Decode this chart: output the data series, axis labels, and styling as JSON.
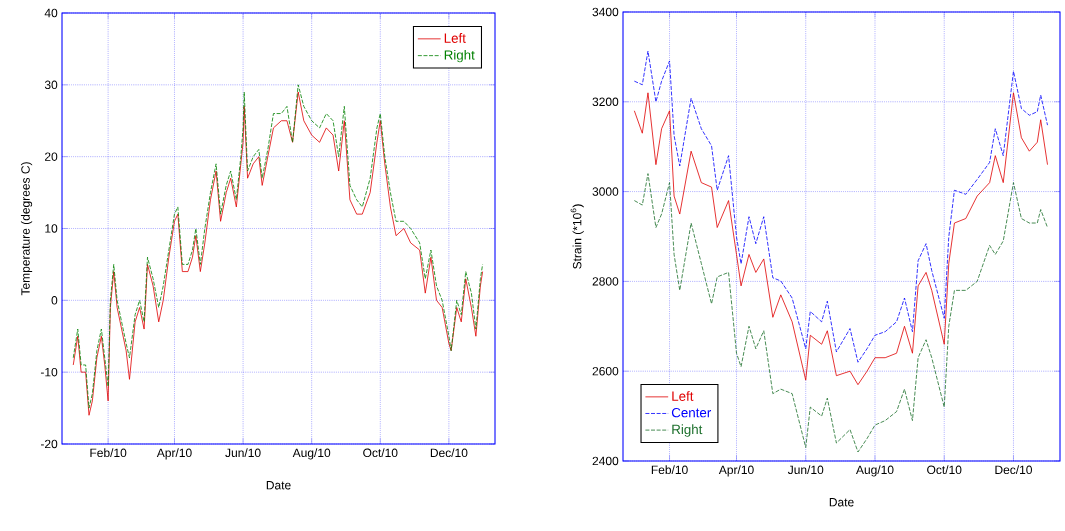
{
  "chart_data": [
    {
      "type": "line",
      "xlabel": "Date",
      "ylabel": "Temperature (degrees C)",
      "x": [
        "2010-01-01",
        "2010-01-05",
        "2010-01-08",
        "2010-01-12",
        "2010-01-15",
        "2010-01-18",
        "2010-01-22",
        "2010-01-26",
        "2010-01-29",
        "2010-02-01",
        "2010-02-03",
        "2010-02-06",
        "2010-02-09",
        "2010-02-13",
        "2010-02-17",
        "2010-02-20",
        "2010-02-25",
        "2010-03-01",
        "2010-03-05",
        "2010-03-08",
        "2010-03-13",
        "2010-03-18",
        "2010-03-22",
        "2010-03-27",
        "2010-04-01",
        "2010-04-04",
        "2010-04-08",
        "2010-04-13",
        "2010-04-17",
        "2010-04-20",
        "2010-04-24",
        "2010-04-28",
        "2010-05-03",
        "2010-05-08",
        "2010-05-12",
        "2010-05-17",
        "2010-05-21",
        "2010-05-26",
        "2010-05-30",
        "2010-06-01",
        "2010-06-02",
        "2010-06-05",
        "2010-06-10",
        "2010-06-15",
        "2010-06-18",
        "2010-06-23",
        "2010-06-28",
        "2010-07-05",
        "2010-07-10",
        "2010-07-15",
        "2010-07-20",
        "2010-07-25",
        "2010-08-01",
        "2010-08-08",
        "2010-08-14",
        "2010-08-20",
        "2010-08-25",
        "2010-08-30",
        "2010-09-04",
        "2010-09-10",
        "2010-09-15",
        "2010-09-22",
        "2010-09-28",
        "2010-10-01",
        "2010-10-05",
        "2010-10-10",
        "2010-10-15",
        "2010-10-22",
        "2010-10-28",
        "2010-11-05",
        "2010-11-10",
        "2010-11-15",
        "2010-11-20",
        "2010-11-25",
        "2010-12-01",
        "2010-12-03",
        "2010-12-08",
        "2010-12-12",
        "2010-12-16",
        "2010-12-21",
        "2010-12-25",
        "2010-12-29",
        "2010-12-31"
      ],
      "series": [
        {
          "name": "Left",
          "color": "#e00000",
          "line_style": "solid",
          "values": [
            -9,
            -5,
            -10,
            -10,
            -16,
            -14,
            -8,
            -5,
            -9,
            -14,
            -1,
            4,
            -1,
            -4,
            -7,
            -11,
            -3,
            -1,
            -4,
            5,
            2,
            -3,
            0,
            6,
            11,
            12,
            4,
            4,
            6,
            9,
            4,
            8,
            14,
            18,
            11,
            15,
            17,
            13,
            19,
            22,
            27,
            17,
            19,
            20,
            16,
            20,
            24,
            25,
            25,
            22,
            29,
            25,
            23,
            22,
            24,
            23,
            18,
            25,
            14,
            12,
            12,
            15,
            22,
            25,
            19,
            13,
            9,
            10,
            8,
            7,
            1,
            6,
            0,
            -1,
            -6,
            -7,
            -1,
            -3,
            3,
            -1,
            -5,
            2,
            4
          ]
        },
        {
          "name": "Right",
          "color": "#008000",
          "line_style": "dashed",
          "values": [
            -8,
            -4,
            -9,
            -9,
            -15,
            -13,
            -7,
            -4,
            -8,
            -12,
            0,
            5,
            0,
            -3,
            -6,
            -8,
            -2,
            0,
            -3,
            6,
            3,
            -1,
            2,
            7,
            12,
            13,
            5,
            5,
            7,
            10,
            5,
            10,
            15,
            19,
            12,
            16,
            18,
            14,
            20,
            24,
            29,
            18,
            20,
            21,
            17,
            21,
            26,
            26,
            27,
            22,
            30,
            27,
            25,
            24,
            26,
            25,
            20,
            27,
            16,
            14,
            13,
            17,
            24,
            26,
            20,
            15,
            11,
            11,
            10,
            8,
            3,
            7,
            2,
            0,
            -5,
            -7,
            0,
            -2,
            4,
            1,
            -4,
            3,
            5
          ]
        }
      ],
      "xlim": [
        "2009-12-22",
        "2011-01-11"
      ],
      "ylim": [
        -20,
        40
      ],
      "xticks": [
        {
          "value": "2010-02-01",
          "label": "Feb/10"
        },
        {
          "value": "2010-04-01",
          "label": "Apr/10"
        },
        {
          "value": "2010-06-01",
          "label": "Jun/10"
        },
        {
          "value": "2010-08-01",
          "label": "Aug/10"
        },
        {
          "value": "2010-10-01",
          "label": "Oct/10"
        },
        {
          "value": "2010-12-01",
          "label": "Dec/10"
        }
      ],
      "yticks": [
        -20,
        -10,
        0,
        10,
        20,
        30,
        40
      ],
      "grid": true,
      "legend": "top right",
      "marker": "none"
    },
    {
      "type": "line",
      "xlabel": "Date",
      "ylabel": "Strain (*10$^{6}$)",
      "x": [
        "2010-01-01",
        "2010-01-08",
        "2010-01-13",
        "2010-01-20",
        "2010-01-25",
        "2010-02-01",
        "2010-02-05",
        "2010-02-10",
        "2010-02-20",
        "2010-03-01",
        "2010-03-10",
        "2010-03-15",
        "2010-03-25",
        "2010-04-01",
        "2010-04-05",
        "2010-04-12",
        "2010-04-18",
        "2010-04-25",
        "2010-05-03",
        "2010-05-10",
        "2010-05-20",
        "2010-06-01",
        "2010-06-05",
        "2010-06-15",
        "2010-06-20",
        "2010-06-28",
        "2010-07-10",
        "2010-07-17",
        "2010-07-25",
        "2010-08-01",
        "2010-08-10",
        "2010-08-20",
        "2010-08-27",
        "2010-09-03",
        "2010-09-08",
        "2010-09-15",
        "2010-09-20",
        "2010-10-01",
        "2010-10-05",
        "2010-10-10",
        "2010-10-20",
        "2010-10-30",
        "2010-11-10",
        "2010-11-15",
        "2010-11-22",
        "2010-12-01",
        "2010-12-08",
        "2010-12-15",
        "2010-12-22",
        "2010-12-25",
        "2010-12-31"
      ],
      "series": [
        {
          "name": "Left",
          "color": "#e00000",
          "line_style": "solid",
          "values": [
            3180,
            3130,
            3220,
            3060,
            3140,
            3180,
            2990,
            2950,
            3090,
            3020,
            3010,
            2920,
            2980,
            2860,
            2790,
            2860,
            2820,
            2850,
            2720,
            2770,
            2710,
            2580,
            2680,
            2660,
            2690,
            2590,
            2600,
            2570,
            2600,
            2630,
            2630,
            2640,
            2700,
            2640,
            2790,
            2820,
            2780,
            2660,
            2840,
            2930,
            2940,
            2990,
            3020,
            3080,
            3020,
            3220,
            3120,
            3090,
            3110,
            3160,
            3060
          ]
        },
        {
          "name": "Center",
          "color": "#0000ff",
          "line_style": "dashed",
          "values": [
            3246,
            3238,
            3313,
            3200,
            3246,
            3291,
            3125,
            3057,
            3208,
            3140,
            3102,
            3003,
            3080,
            2899,
            2839,
            2944,
            2884,
            2944,
            2808,
            2801,
            2763,
            2650,
            2733,
            2710,
            2756,
            2643,
            2695,
            2620,
            2650,
            2680,
            2688,
            2710,
            2763,
            2688,
            2846,
            2884,
            2824,
            2718,
            2899,
            3003,
            2994,
            3027,
            3065,
            3140,
            3080,
            3268,
            3185,
            3170,
            3178,
            3215,
            3148
          ]
        },
        {
          "name": "Right",
          "color": "#1a6e2a",
          "line_style": "dashed",
          "values": [
            2980,
            2970,
            3040,
            2920,
            2950,
            3020,
            2860,
            2780,
            2930,
            2840,
            2750,
            2810,
            2820,
            2640,
            2610,
            2700,
            2650,
            2690,
            2550,
            2560,
            2550,
            2430,
            2520,
            2500,
            2540,
            2440,
            2470,
            2420,
            2450,
            2480,
            2490,
            2510,
            2560,
            2490,
            2630,
            2670,
            2630,
            2520,
            2700,
            2780,
            2780,
            2800,
            2880,
            2860,
            2890,
            3020,
            2940,
            2930,
            2930,
            2960,
            2920
          ]
        }
      ],
      "xlim": [
        "2009-12-22",
        "2011-01-11"
      ],
      "ylim": [
        2400,
        3400
      ],
      "xticks": [
        {
          "value": "2010-02-01",
          "label": "Feb/10"
        },
        {
          "value": "2010-04-01",
          "label": "Apr/10"
        },
        {
          "value": "2010-06-01",
          "label": "Jun/10"
        },
        {
          "value": "2010-08-01",
          "label": "Aug/10"
        },
        {
          "value": "2010-10-01",
          "label": "Oct/10"
        },
        {
          "value": "2010-12-01",
          "label": "Dec/10"
        }
      ],
      "yticks": [
        2400,
        2600,
        2800,
        3000,
        3200,
        3400
      ],
      "grid": true,
      "legend": "bottom left",
      "marker": "none"
    }
  ]
}
